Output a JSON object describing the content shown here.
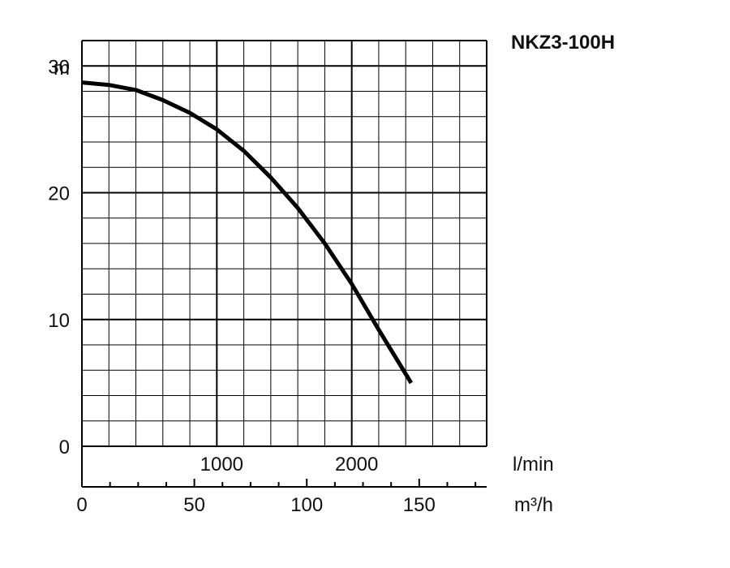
{
  "chart_data": {
    "type": "line",
    "title": "NKZ3-100H",
    "ylabel": "m",
    "xlabel": "l/min",
    "xlabel_secondary": "m³/h",
    "xlim": [
      0,
      3000
    ],
    "ylim": [
      0,
      32
    ],
    "grid": true,
    "y_ticks": [
      "0",
      "10",
      "20",
      "30"
    ],
    "y_tick_values": [
      0,
      10,
      20,
      30
    ],
    "x_ticks_lmin": [
      "1000",
      "2000"
    ],
    "x_tick_values_lmin": [
      1000,
      2000
    ],
    "x_ticks_m3h": [
      "0",
      "50",
      "100",
      "150"
    ],
    "x_tick_values_m3h": [
      0,
      50,
      100,
      150
    ],
    "series": [
      {
        "x": [
          0,
          200,
          400,
          600,
          800,
          1000,
          1200,
          1400,
          1600,
          1800,
          2000,
          2200,
          2440
        ],
        "y": [
          28.7,
          28.5,
          28.1,
          27.3,
          26.3,
          25.0,
          23.3,
          21.2,
          18.8,
          16.0,
          12.8,
          9.2,
          5.0
        ]
      }
    ],
    "line_color": "#000000",
    "grid_color": "#000000"
  }
}
